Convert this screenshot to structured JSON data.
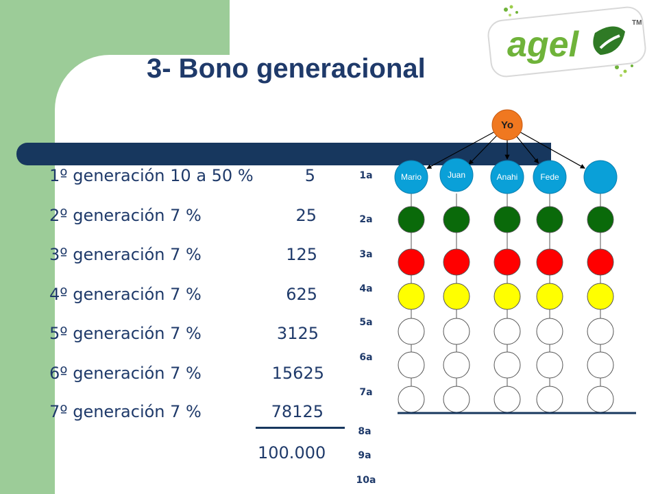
{
  "slide": {
    "title": "3- Bono generacional",
    "logo": {
      "text": "agel",
      "tm": "TM",
      "colors": {
        "green": "#6fb33a",
        "dark": "#2f7a25"
      }
    },
    "rows": [
      {
        "label": "1º generación 10 a 50 %",
        "value": "5"
      },
      {
        "label": "2º generación 7 %",
        "value": "25"
      },
      {
        "label": "3º generación 7 %",
        "value": "125"
      },
      {
        "label": "4º generación 7 %",
        "value": "625"
      },
      {
        "label": "5º generación 7 %",
        "value": "3125"
      },
      {
        "label": "6º generación 7 %",
        "value": "15625"
      },
      {
        "label": "7º generación 7 %",
        "value": "78125"
      }
    ],
    "total": "100.000",
    "generations": [
      "1a",
      "2a",
      "3a",
      "4a",
      "5a",
      "6a",
      "7a",
      "8a",
      "9a",
      "10a"
    ],
    "tree": {
      "root": "Yo",
      "root_color": "#f07820",
      "first_gen": [
        "Mario",
        "Juan",
        "Anahi",
        "Fede",
        ""
      ],
      "first_gen_color": "#0aa0d8",
      "level_colors": [
        "#0a6a0a",
        "#ff0000",
        "#ffff00",
        "#ffffff",
        "#ffffff",
        "#ffffff"
      ]
    },
    "colors": {
      "accent": "#1f3a6a",
      "bar": "#17375e",
      "side": "#9ccc98"
    }
  }
}
